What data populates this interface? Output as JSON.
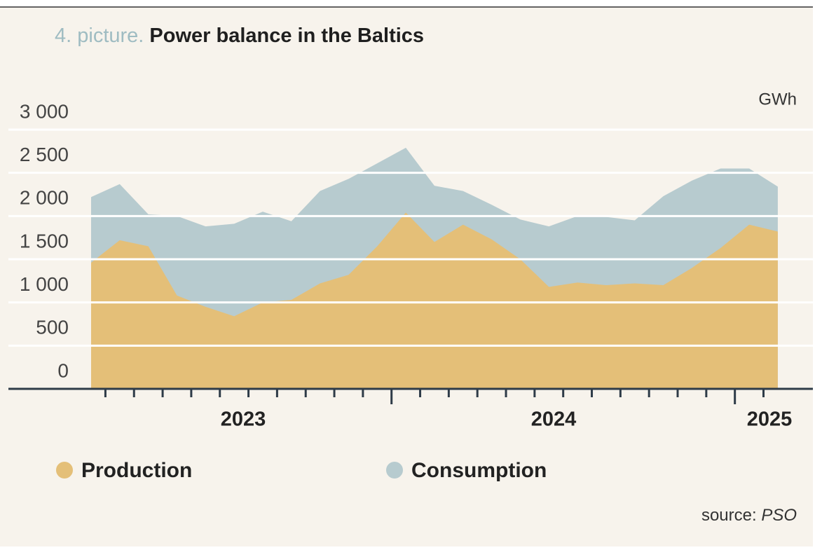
{
  "chart_data": {
    "type": "area",
    "title_prefix": "4. picture.",
    "title": "Power balance in the Baltics",
    "unit": "GWh",
    "source_prefix": "source:",
    "source": "PSO",
    "categories": [
      null,
      null,
      null,
      null,
      null,
      null,
      null,
      null,
      null,
      null,
      null,
      null,
      null,
      null,
      null,
      null,
      null,
      null,
      null,
      null,
      null,
      null,
      null,
      null,
      null
    ],
    "year_labels": [
      "2023",
      "2024",
      "2025"
    ],
    "series": [
      {
        "name": "Production",
        "color": "#e4bf78",
        "values": [
          1460,
          1720,
          1650,
          1080,
          950,
          840,
          1000,
          1030,
          1220,
          1320,
          1650,
          2040,
          1700,
          1900,
          1730,
          1500,
          1180,
          1230,
          1200,
          1220,
          1200,
          1400,
          1630,
          1900,
          1820
        ]
      },
      {
        "name": "Consumption",
        "color": "#b7cbcf",
        "values": [
          2220,
          2370,
          2020,
          2000,
          1880,
          1910,
          2050,
          1940,
          2290,
          2430,
          2610,
          2790,
          2350,
          2290,
          2130,
          1960,
          1880,
          2000,
          1990,
          1950,
          2230,
          2410,
          2550,
          2550,
          2340
        ]
      }
    ],
    "ylim": [
      0,
      3000
    ],
    "yticks": [
      0,
      500,
      {
        "value": 1000,
        "label": "1 000"
      },
      {
        "value": 1500,
        "label": "1 500"
      },
      {
        "value": 2000,
        "label": "2 000"
      },
      {
        "value": 2500,
        "label": "2 500"
      },
      {
        "value": 3000,
        "label": "3 000"
      }
    ],
    "grid": true
  }
}
